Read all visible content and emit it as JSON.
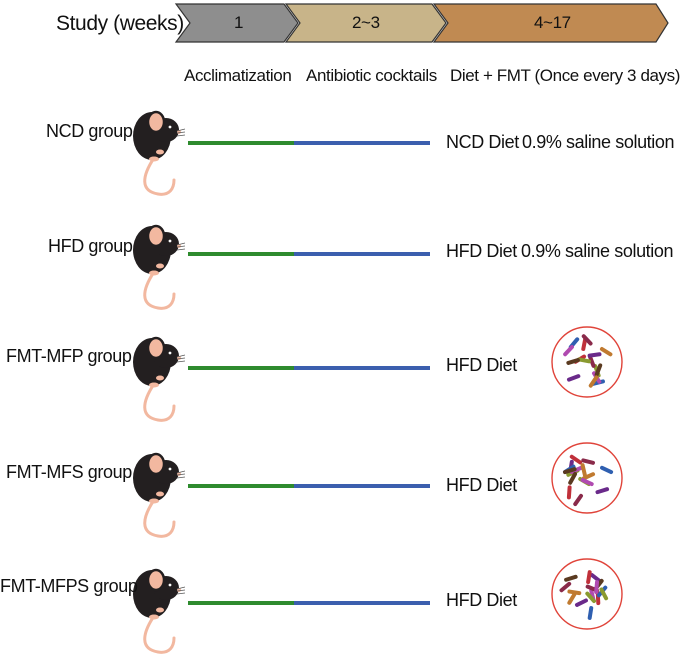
{
  "header": {
    "study_label": "Study (weeks)",
    "phases": [
      {
        "label": "1",
        "color": "#8e8e8e"
      },
      {
        "label": "2~3",
        "color": "#c8b489"
      },
      {
        "label": "4~17",
        "color": "#c08a52"
      }
    ],
    "stage_labels": [
      "Acclimatization",
      "Antibiotic cocktails",
      "Diet + FMT (Once every 3 days)"
    ]
  },
  "groups": [
    {
      "name": "NCD group",
      "diet": "NCD Diet",
      "treatment": "0.9% saline solution",
      "treatment_icon": null
    },
    {
      "name": "HFD group",
      "diet": "HFD Diet",
      "treatment": "0.9% saline solution",
      "treatment_icon": null
    },
    {
      "name": "FMT-MFP group",
      "diet": "HFD Diet",
      "treatment": "",
      "treatment_icon": "bacteria-dish-icon"
    },
    {
      "name": "FMT-MFS group",
      "diet": "HFD Diet",
      "treatment": "",
      "treatment_icon": "bacteria-dish-icon"
    },
    {
      "name": "FMT-MFPS group",
      "diet": "HFD Diet",
      "treatment": "",
      "treatment_icon": "bacteria-dish-icon"
    }
  ],
  "colors": {
    "acclimatization_line": "#2e8b2e",
    "antibiotic_line": "#3b5fae",
    "mouse_body": "#231f20",
    "mouse_skin": "#f2b8a0",
    "dish_border": "#e0443a"
  },
  "icons": {
    "mouse": "mouse-icon",
    "dish": "bacteria-dish-icon"
  }
}
